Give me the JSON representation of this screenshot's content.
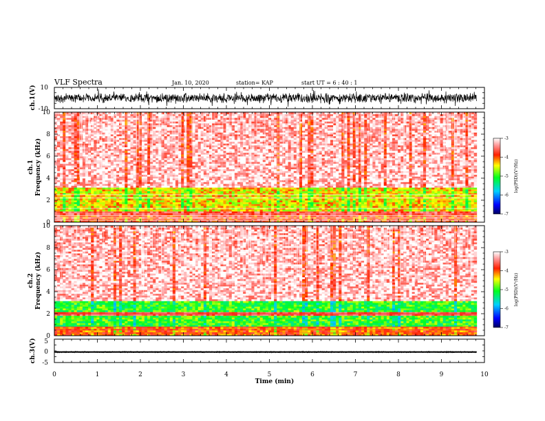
{
  "header": {
    "title": "VLF Spectra",
    "date": "Jan. 10, 2020",
    "station": "station= KAP",
    "start": "start  UT =   6 : 40 : 1"
  },
  "chart_data": [
    {
      "id": "ch1-waveform",
      "type": "line",
      "ylabel": "ch.1(V)",
      "ylim": [
        -10,
        10
      ],
      "yticklabels": [
        "10",
        "-10"
      ],
      "xlim": [
        0,
        10
      ],
      "data_extent_min": 9.82,
      "signal": {
        "kind": "noise-band",
        "center": 0,
        "typical_amplitude": 5,
        "peak_amplitude": 10
      }
    },
    {
      "id": "ch1-spectrogram",
      "type": "heatmap",
      "ylabel": "ch.1\nFrequency (kHz)",
      "ylim": [
        0,
        10
      ],
      "yticks": [
        0,
        2,
        4,
        6,
        8,
        10
      ],
      "xlim": [
        0,
        10
      ],
      "data_extent_min": 9.82,
      "colorbar": {
        "label": "log(PSD)(V²/Hz)",
        "range": [
          -7,
          -3
        ],
        "ticks": [
          "-3",
          "-4",
          "-5",
          "-6",
          "-7"
        ]
      },
      "bands": [
        {
          "from_khz": 0.0,
          "to_khz": 0.7,
          "log_psd": -3.8,
          "note": "striped low band"
        },
        {
          "from_khz": 1.0,
          "to_khz": 3.2,
          "log_psd": -4.4,
          "note": "yellow/green emission"
        },
        {
          "from_khz": 3.2,
          "to_khz": 10.0,
          "log_psd": -3.3,
          "note": "red background"
        }
      ]
    },
    {
      "id": "ch2-spectrogram",
      "type": "heatmap",
      "ylabel": "ch.2\nFrequency (kHz)",
      "ylim": [
        0,
        10
      ],
      "yticks": [
        0,
        2,
        4,
        6,
        8,
        10
      ],
      "xlim": [
        0,
        10
      ],
      "data_extent_min": 9.82,
      "colorbar": {
        "label": "log(PSD)(V²/Hz)",
        "range": [
          -7,
          -3
        ],
        "ticks": [
          "-3",
          "-4",
          "-5",
          "-6",
          "-7"
        ]
      },
      "bands": [
        {
          "from_khz": 0.0,
          "to_khz": 0.9,
          "log_psd": -4.0,
          "note": "yellow low band"
        },
        {
          "from_khz": 0.9,
          "to_khz": 1.9,
          "log_psd": -5.0,
          "note": "green emission"
        },
        {
          "from_khz": 2.1,
          "to_khz": 3.1,
          "log_psd": -5.0,
          "note": "green emission"
        },
        {
          "from_khz": 3.1,
          "to_khz": 10.0,
          "log_psd": -3.3,
          "note": "red background"
        }
      ]
    },
    {
      "id": "ch3-waveform",
      "type": "line",
      "ylabel": "ch.3(V)",
      "ylim": [
        -5,
        5
      ],
      "yticklabels": [
        "5",
        "0",
        "-5"
      ],
      "xlim": [
        0,
        10
      ],
      "data_extent_min": 9.82,
      "signal": {
        "kind": "flat-band",
        "center": -0.5,
        "half_width": 0.3
      }
    }
  ],
  "xaxis": {
    "label": "Time (min)",
    "ticks": [
      0,
      1,
      2,
      3,
      4,
      5,
      6,
      7,
      8,
      9,
      10
    ]
  },
  "colors": {
    "background": "#ffffff",
    "waveform": "#000000",
    "psd_high": "#ff2020",
    "psd_mid": "#ffff00",
    "psd_low": "#20ff20"
  }
}
